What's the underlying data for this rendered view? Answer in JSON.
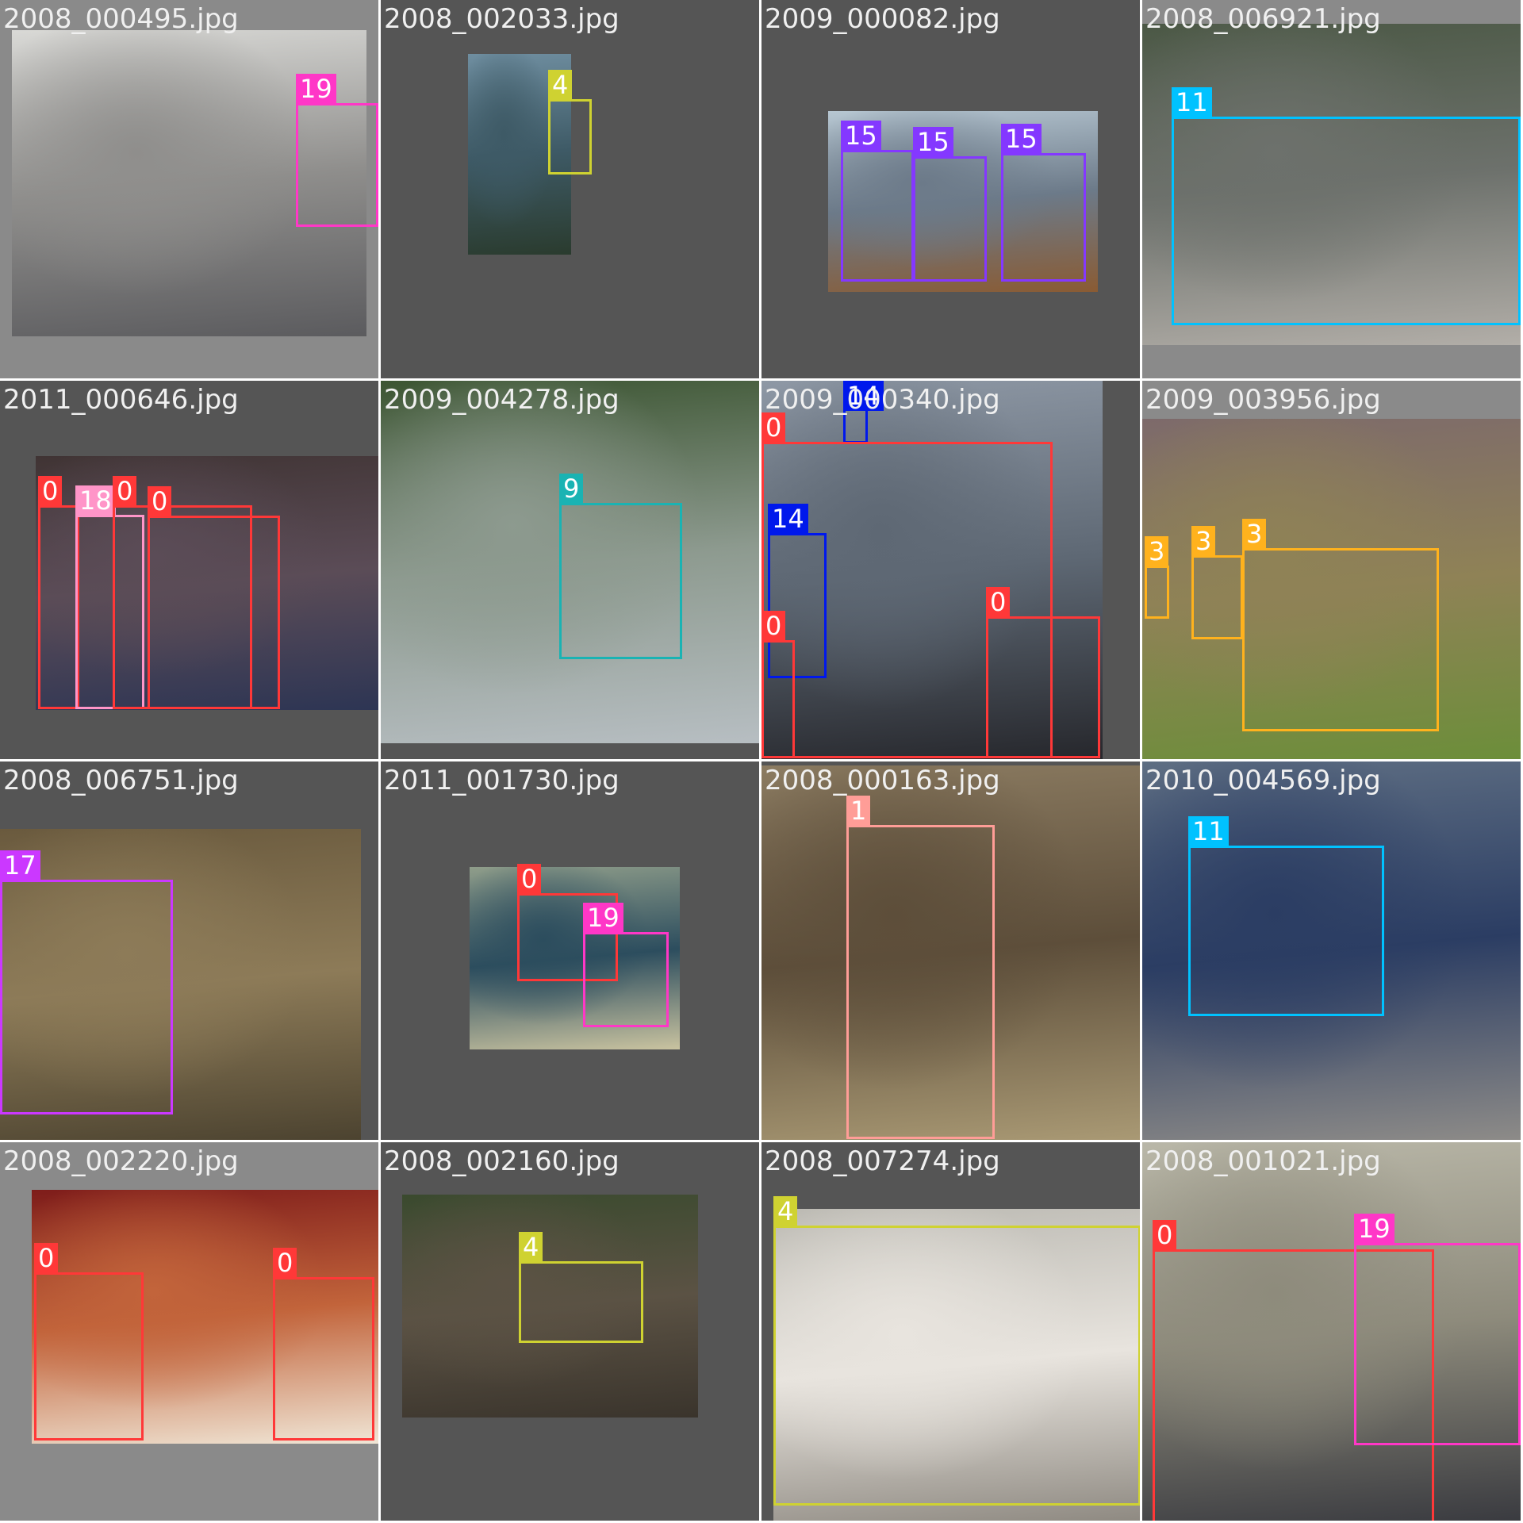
{
  "tiles": [
    {
      "filename": "2008_000495.jpg",
      "bg": "#8a8a8a",
      "photo": {
        "colors": [
          "#d9d9d6",
          "#8f8e8c",
          "#5b5b5e"
        ]
      },
      "boxes": [
        {
          "label": "19",
          "color": "#ff37c7"
        }
      ]
    },
    {
      "filename": "2008_002033.jpg",
      "bg": "#555555",
      "photo": {
        "colors": [
          "#6f8ea0",
          "#3e5a66",
          "#2a3b2e"
        ]
      },
      "boxes": [
        {
          "label": "4",
          "color": "#cfd231"
        }
      ]
    },
    {
      "filename": "2009_000082.jpg",
      "bg": "#555555",
      "photo": {
        "colors": [
          "#b7c7d2",
          "#6c7a89",
          "#8a5b33"
        ]
      },
      "boxes": [
        {
          "label": "15",
          "color": "#8438ff"
        },
        {
          "label": "15",
          "color": "#8438ff"
        },
        {
          "label": "15",
          "color": "#8438ff"
        }
      ]
    },
    {
      "filename": "2008_006921.jpg",
      "bg": "#8a8a8a",
      "photo": {
        "colors": [
          "#4b5845",
          "#6d716c",
          "#b2aea8"
        ]
      },
      "boxes": [
        {
          "label": "11",
          "color": "#00c2ff"
        }
      ]
    },
    {
      "filename": "2011_000646.jpg",
      "bg": "#555555",
      "photo": {
        "colors": [
          "#403434",
          "#5b4c57",
          "#2d3554"
        ]
      },
      "boxes": [
        {
          "label": "0",
          "color": "#ff3838"
        },
        {
          "label": "18",
          "color": "#ff95c8"
        },
        {
          "label": "0",
          "color": "#ff3838"
        },
        {
          "label": "0",
          "color": "#ff3838"
        }
      ]
    },
    {
      "filename": "2009_004278.jpg",
      "bg": "#555555",
      "photo": {
        "colors": [
          "#3c5532",
          "#8d9a8f",
          "#b7bec2"
        ]
      },
      "boxes": [
        {
          "label": "9",
          "color": "#1ab3b3"
        }
      ]
    },
    {
      "filename": "2009_000340.jpg",
      "bg": "#555555",
      "photo": {
        "colors": [
          "#8e98a5",
          "#5e6874",
          "#26272c"
        ]
      },
      "boxes": [
        {
          "label": "14",
          "color": "#0018ec"
        },
        {
          "label": "0",
          "color": "#ff3838"
        },
        {
          "label": "14",
          "color": "#0018ec"
        },
        {
          "label": "0",
          "color": "#ff3838"
        },
        {
          "label": "0",
          "color": "#ff3838"
        }
      ]
    },
    {
      "filename": "2009_003956.jpg",
      "bg": "#8a8a8a",
      "photo": {
        "colors": [
          "#7d6a6b",
          "#8f8256",
          "#6c8e3a"
        ]
      },
      "boxes": [
        {
          "label": "3",
          "color": "#ffb21d"
        },
        {
          "label": "3",
          "color": "#ffb21d"
        },
        {
          "label": "3",
          "color": "#ffb21d"
        }
      ]
    },
    {
      "filename": "2008_006751.jpg",
      "bg": "#555555",
      "photo": {
        "colors": [
          "#6a5a3e",
          "#8d7b58",
          "#4c4330"
        ]
      },
      "boxes": [
        {
          "label": "17",
          "color": "#cb38ff"
        }
      ]
    },
    {
      "filename": "2011_001730.jpg",
      "bg": "#555555",
      "photo": {
        "colors": [
          "#8f9d8a",
          "#2c4d5e",
          "#c9c3a0"
        ]
      },
      "boxes": [
        {
          "label": "0",
          "color": "#ff3838"
        },
        {
          "label": "19",
          "color": "#ff37c7"
        }
      ]
    },
    {
      "filename": "2008_000163.jpg",
      "bg": "#555555",
      "photo": {
        "colors": [
          "#8b7b61",
          "#5d4e3a",
          "#a99974"
        ]
      },
      "boxes": [
        {
          "label": "1",
          "color": "#ff9d97"
        }
      ]
    },
    {
      "filename": "2010_004569.jpg",
      "bg": "#555555",
      "photo": {
        "colors": [
          "#5e6e83",
          "#2b3d63",
          "#8d8b88"
        ]
      },
      "boxes": [
        {
          "label": "11",
          "color": "#00c2ff"
        }
      ]
    },
    {
      "filename": "2008_002220.jpg",
      "bg": "#8a8a8a",
      "photo": {
        "colors": [
          "#7e1c1a",
          "#c2643b",
          "#f0e6d6"
        ]
      },
      "boxes": [
        {
          "label": "0",
          "color": "#ff3838"
        },
        {
          "label": "0",
          "color": "#ff3838"
        }
      ]
    },
    {
      "filename": "2008_002160.jpg",
      "bg": "#555555",
      "photo": {
        "colors": [
          "#3a4a2e",
          "#5b5244",
          "#3a342c"
        ]
      },
      "boxes": [
        {
          "label": "4",
          "color": "#cfd231"
        }
      ]
    },
    {
      "filename": "2008_007274.jpg",
      "bg": "#555555",
      "photo": {
        "colors": [
          "#bcbab3",
          "#e8e4de",
          "#8f8a82"
        ]
      },
      "boxes": [
        {
          "label": "4",
          "color": "#cfd231"
        }
      ]
    },
    {
      "filename": "2008_001021.jpg",
      "bg": "#8a8a8a",
      "photo": {
        "colors": [
          "#b9b7a8",
          "#8e8b7c",
          "#3a3b40"
        ]
      },
      "boxes": [
        {
          "label": "0",
          "color": "#ff3838"
        },
        {
          "label": "19",
          "color": "#ff37c7"
        }
      ]
    }
  ]
}
